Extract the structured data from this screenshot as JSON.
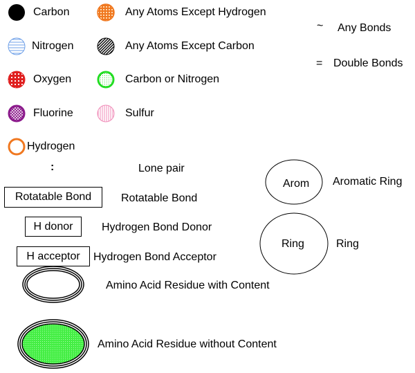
{
  "atoms": {
    "carbon": "Carbon",
    "nitrogen": "Nitrogen",
    "oxygen": "Oxygen",
    "fluorine": "Fluorine",
    "hydrogen": "Hydrogen",
    "any_except_hydrogen": "Any Atoms Except Hydrogen",
    "any_except_carbon": "Any Atoms Except Carbon",
    "carbon_or_nitrogen": "Carbon or Nitrogen",
    "sulfur": "Sulfur"
  },
  "bonds": {
    "any_symbol": "~",
    "any_label": "Any Bonds",
    "double_symbol": "=",
    "double_label": "Double Bonds"
  },
  "lone_pair": {
    "symbol": ":",
    "label": "Lone pair"
  },
  "rotatable": {
    "box": "Rotatable Bond",
    "label": "Rotatable Bond"
  },
  "donor": {
    "box": "H donor",
    "label": "Hydrogen Bond Donor"
  },
  "acceptor": {
    "box": "H acceptor",
    "label": "Hydrogen Bond Acceptor"
  },
  "aromatic": {
    "symbol": "Arom",
    "label": "Aromatic Ring"
  },
  "ring": {
    "symbol": "Ring",
    "label": "Ring"
  },
  "residues": {
    "with_content": "Amino Acid Residue with Content",
    "without_content": "Amino Acid Residue without Content"
  },
  "colors": {
    "nitrogen": "#6fa0e8",
    "oxygen": "#e02020",
    "fluorine": "#8b1a8b",
    "hydrogen": "#f07820",
    "any_except_hydrogen": "#f07820",
    "carbon_or_nitrogen": "#22dd22",
    "sulfur": "#f08cb8",
    "residue_fill": "#44ee44"
  }
}
